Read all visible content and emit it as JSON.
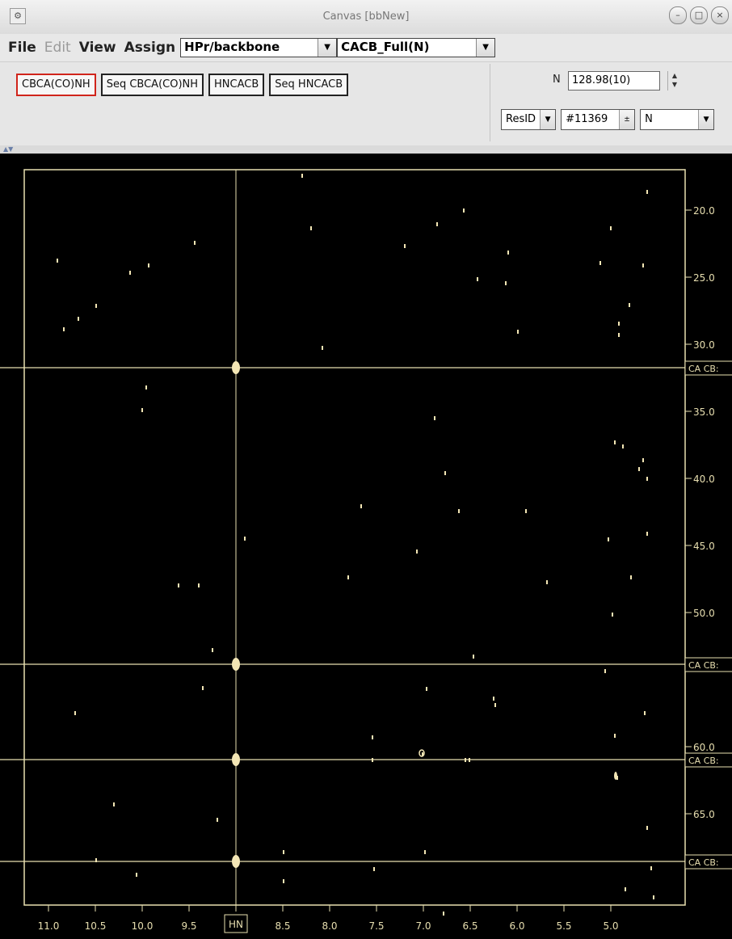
{
  "window": {
    "title": "Canvas  [bbNew]",
    "icon": "app-icon",
    "controls": [
      "minimize-icon",
      "maximize-icon",
      "close-icon"
    ]
  },
  "menubar": {
    "items": [
      "File",
      "Edit",
      "View",
      "Assign"
    ],
    "disabled": [
      "Edit"
    ],
    "project_select": "HPr/backbone",
    "spectrum_select": "CACB_Full(N)"
  },
  "toolbar": {
    "spectrum_buttons": [
      "CBCA(CO)NH",
      "Seq CBCA(CO)NH",
      "HNCACB",
      "Seq HNCACB"
    ],
    "active_button": "CBCA(CO)NH",
    "n_label": "N",
    "n_value": "128.98(10)",
    "resid_select": "ResID",
    "resid_value": "#11369",
    "atom_select": "N"
  },
  "plot": {
    "x_axis_label": "HN",
    "x_ticks": [
      "11.0",
      "10.5",
      "10.0",
      "9.5",
      "9.0",
      "8.5",
      "8.0",
      "7.5",
      "7.0",
      "6.5",
      "6.0",
      "5.5",
      "5.0"
    ],
    "y_ticks": [
      "20.0",
      "25.0",
      "30.0",
      "35.0",
      "40.0",
      "45.0",
      "50.0",
      "60.0",
      "65.0"
    ],
    "marker_labels": [
      "CA CB:",
      "CA CB:",
      "CA CB:",
      "CA CB:"
    ],
    "frame_color": "#e8dfb0",
    "peak_color": "#f3e6b5"
  }
}
